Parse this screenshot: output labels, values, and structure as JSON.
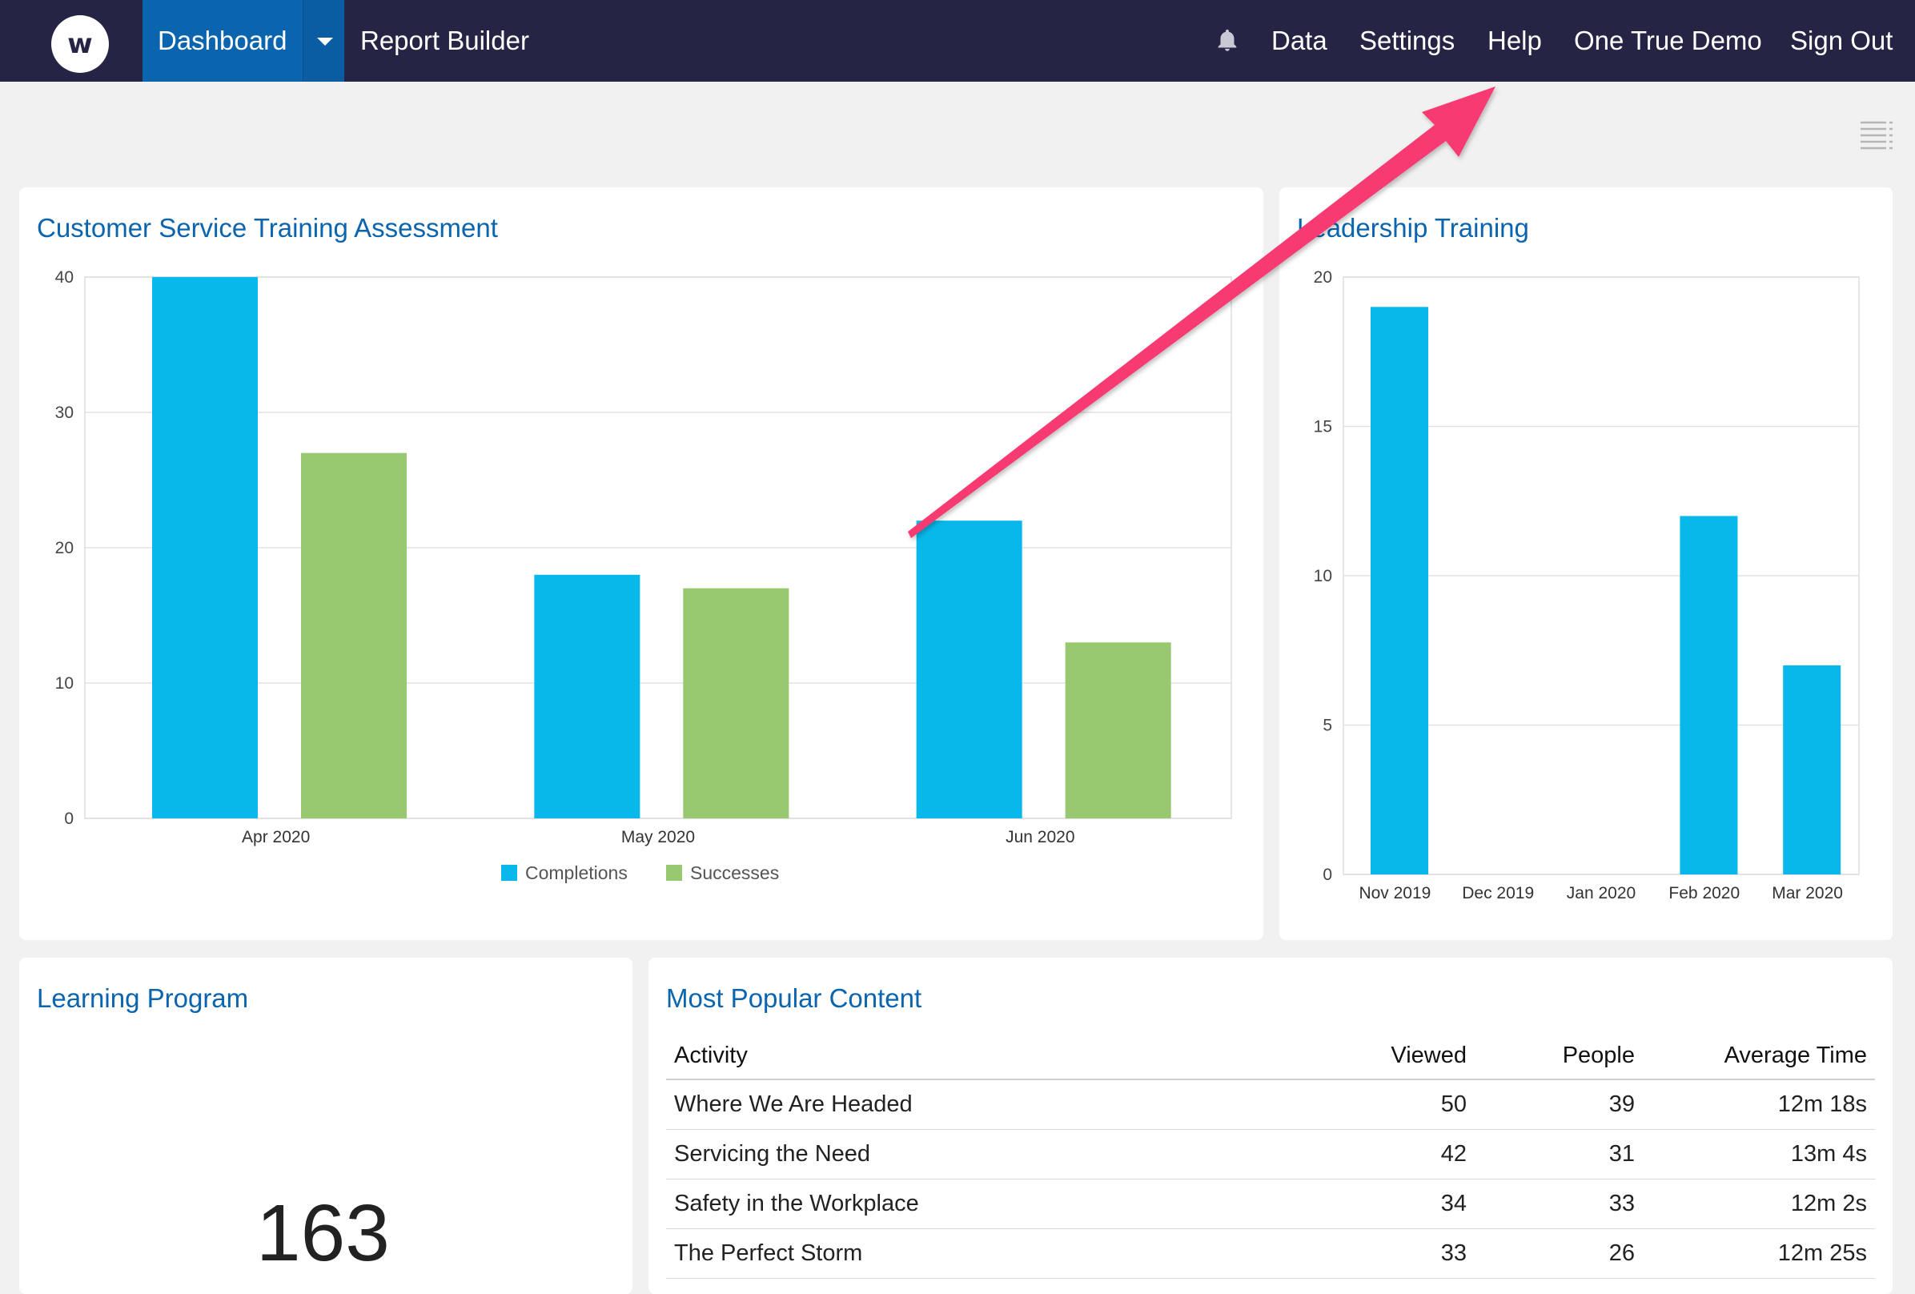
{
  "header": {
    "logo_letter": "w",
    "active_tab": "Dashboard",
    "report_builder": "Report Builder",
    "right_items": [
      "Data",
      "Settings",
      "Help",
      "One True Demo",
      "Sign Out"
    ],
    "bg_color": "#252445",
    "active_color": "#0a64ae"
  },
  "cards": {
    "cst": {
      "title": "Customer Service Training Assessment"
    },
    "leadership": {
      "title": "Leadership Training"
    },
    "learning": {
      "title": "Learning Program",
      "value": "163"
    },
    "popular": {
      "title": "Most Popular Content"
    }
  },
  "chart_data": [
    {
      "type": "bar",
      "title": "Customer Service Training Assessment",
      "categories": [
        "Apr 2020",
        "May 2020",
        "Jun 2020"
      ],
      "series": [
        {
          "name": "Completions",
          "color": "#08b8ea",
          "values": [
            40,
            18,
            22
          ]
        },
        {
          "name": "Successes",
          "color": "#98c870",
          "values": [
            27,
            17,
            13
          ]
        }
      ],
      "yticks": [
        "0",
        "10",
        "20",
        "30",
        "40"
      ],
      "ylim": [
        0,
        40
      ],
      "grid": true,
      "legend": "bottom"
    },
    {
      "type": "bar",
      "title": "Leadership Training",
      "categories": [
        "Nov 2019",
        "Dec 2019",
        "Jan 2020",
        "Feb 2020",
        "Mar 2020"
      ],
      "series": [
        {
          "color": "#08b8ea",
          "values": [
            19,
            0,
            0,
            12,
            7
          ]
        }
      ],
      "yticks": [
        "0",
        "5",
        "10",
        "15",
        "20"
      ],
      "ylim": [
        0,
        20
      ],
      "grid": true
    }
  ],
  "popular_table": {
    "headers": [
      "Activity",
      "Viewed",
      "People",
      "Average Time"
    ],
    "rows": [
      [
        "Where We Are Headed",
        "50",
        "39",
        "12m 18s"
      ],
      [
        "Servicing the Need",
        "42",
        "31",
        "13m 4s"
      ],
      [
        "Safety in the Workplace",
        "34",
        "33",
        "12m 2s"
      ],
      [
        "The Perfect Storm",
        "33",
        "26",
        "12m 25s"
      ]
    ]
  },
  "annotation": {
    "arrow_color": "#f73a72"
  }
}
